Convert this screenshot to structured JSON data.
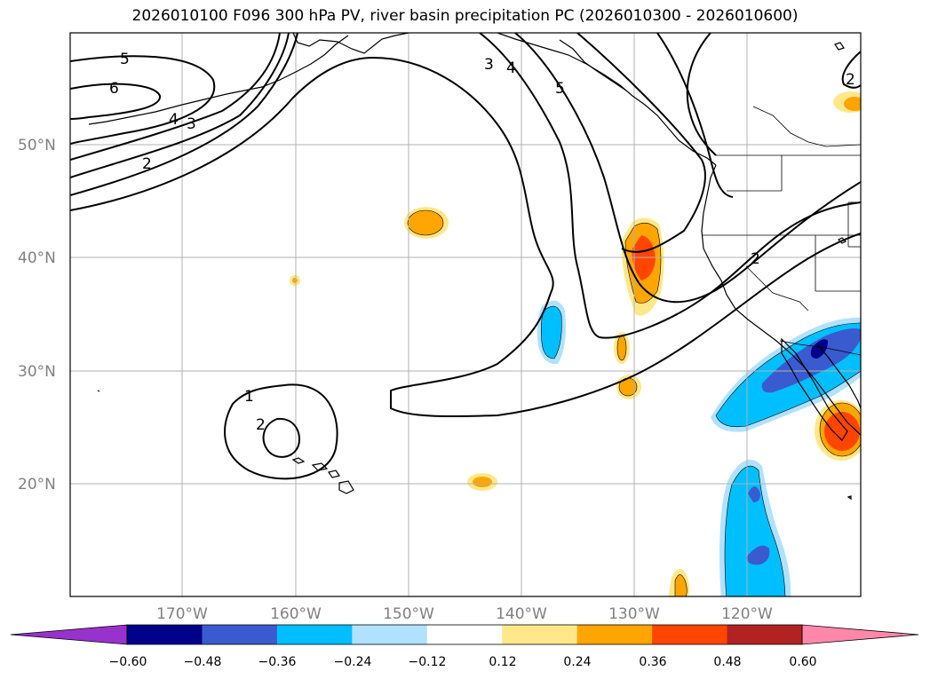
{
  "title": "2026010100 F096 300 hPa PV, river basin precipitation PC (2026010300 - 2026010600)",
  "lat_labels": [
    "50°N",
    "40°N",
    "30°N",
    "20°N"
  ],
  "lon_labels": [
    "170°W",
    "160°W",
    "150°W",
    "140°W",
    "130°W",
    "120°W"
  ],
  "contour_labels": [
    "5",
    "6",
    "4",
    "3",
    "2",
    "3",
    "4",
    "5",
    "2",
    "1",
    "2",
    "2"
  ],
  "colorbar": {
    "ticks": [
      "−0.60",
      "−0.48",
      "−0.36",
      "−0.24",
      "−0.12",
      "0.12",
      "0.24",
      "0.36",
      "0.48",
      "0.60"
    ],
    "colors": [
      "#9932cc",
      "#00008b",
      "#3a5bcf",
      "#00bfff",
      "#b0e2ff",
      "#ffffff",
      "#ffe88a",
      "#ffa500",
      "#ff4500",
      "#b22222",
      "#ff88aa"
    ]
  }
}
